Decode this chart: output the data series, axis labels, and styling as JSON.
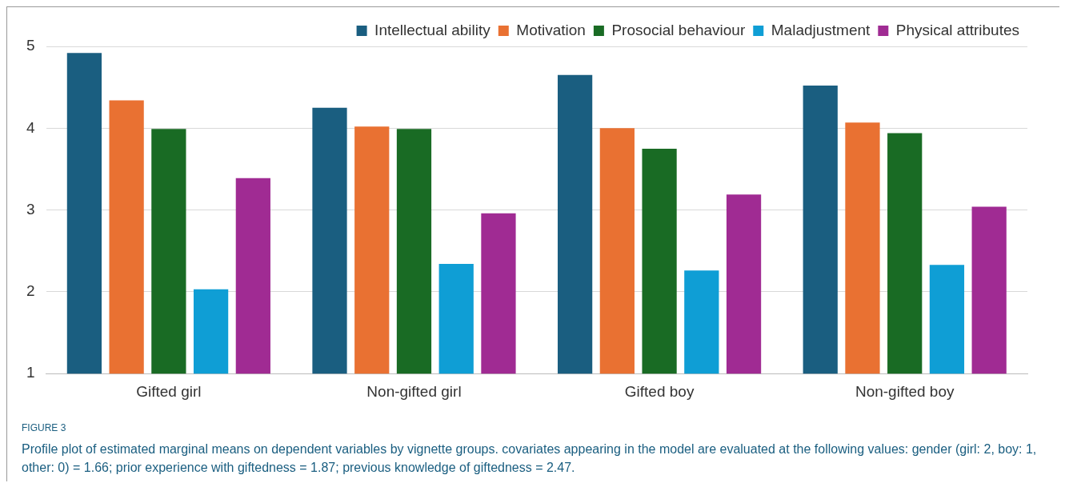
{
  "chart_data": {
    "type": "bar",
    "categories": [
      "Gifted girl",
      "Non-gifted girl",
      "Gifted boy",
      "Non-gifted boy"
    ],
    "series": [
      {
        "name": "Intellectual ability",
        "color": "#1a5e80",
        "values": [
          4.92,
          4.25,
          4.65,
          4.52
        ]
      },
      {
        "name": "Motivation",
        "color": "#e97132",
        "values": [
          4.34,
          4.02,
          4.0,
          4.07
        ]
      },
      {
        "name": "Prosocial behaviour",
        "color": "#196b24",
        "values": [
          3.99,
          3.99,
          3.75,
          3.94
        ]
      },
      {
        "name": "Maladjustment",
        "color": "#0f9ed5",
        "values": [
          2.03,
          2.34,
          2.26,
          2.33
        ]
      },
      {
        "name": "Physical attributes",
        "color": "#a02b93",
        "values": [
          3.39,
          2.96,
          3.19,
          3.04
        ]
      }
    ],
    "ylim": [
      1,
      5
    ],
    "yticks": [
      1,
      2,
      3,
      4,
      5
    ],
    "grid": "y",
    "legend": "top right",
    "annotations": [
      "FIGURE 3",
      "Profile plot of estimated marginal means on dependent variables by vignette groups. covariates appearing in the model are evaluated at the following values: gender (girl: 2, boy: 1, other: 0) = 1.66; prior experience with giftedness = 1.87; previous knowledge of giftedness = 2.47."
    ]
  }
}
